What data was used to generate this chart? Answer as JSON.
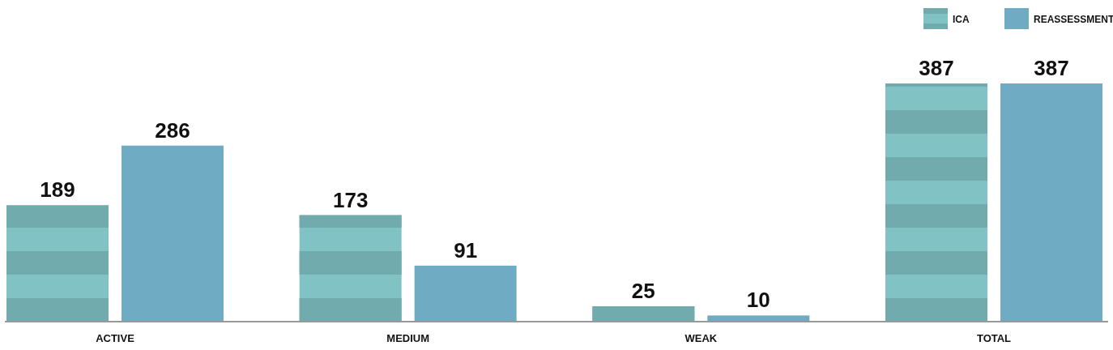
{
  "chart_data": {
    "type": "bar",
    "categories": [
      "ACTIVE",
      "MEDIUM",
      "WEAK",
      "TOTAL"
    ],
    "series": [
      {
        "name": "ICA",
        "color": "#81c2c4",
        "values": [
          189,
          173,
          25,
          387
        ]
      },
      {
        "name": "REASSESSMENT",
        "color": "#70abc4",
        "values": [
          286,
          91,
          10,
          387
        ]
      }
    ],
    "data_labels": true,
    "legend": "top right",
    "grid": false
  }
}
